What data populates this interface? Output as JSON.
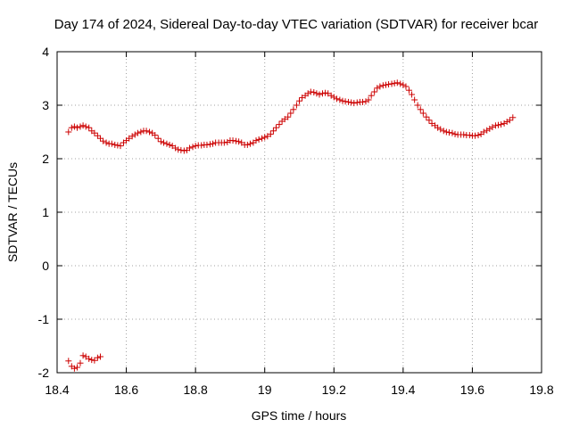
{
  "chart_data": {
    "type": "scatter",
    "title": "Day 174 of 2024, Sidereal Day-to-day VTEC variation (SDTVAR) for receiver bcar",
    "xlabel": "GPS time / hours",
    "ylabel": "SDTVAR / TECUs",
    "xlim": [
      18.4,
      19.8
    ],
    "ylim": [
      -2,
      4
    ],
    "xticks": [
      18.4,
      18.6,
      18.8,
      19.0,
      19.2,
      19.4,
      19.6,
      19.8
    ],
    "xtick_labels": [
      "18.4",
      "18.6",
      "18.8",
      "19",
      "19.2",
      "19.4",
      "19.6",
      "19.8"
    ],
    "yticks": [
      -2,
      -1,
      0,
      1,
      2,
      3,
      4
    ],
    "ytick_labels": [
      "-2",
      "-1",
      "0",
      "1",
      "2",
      "3",
      "4"
    ],
    "grid": true,
    "marker": "+",
    "marker_color": "#cc0000",
    "series": [
      {
        "name": "SDTVAR",
        "points": [
          [
            18.433,
            -1.78
          ],
          [
            18.442,
            -1.88
          ],
          [
            18.45,
            -1.92
          ],
          [
            18.458,
            -1.9
          ],
          [
            18.467,
            -1.82
          ],
          [
            18.475,
            -1.68
          ],
          [
            18.483,
            -1.7
          ],
          [
            18.492,
            -1.74
          ],
          [
            18.5,
            -1.76
          ],
          [
            18.508,
            -1.77
          ],
          [
            18.517,
            -1.72
          ],
          [
            18.525,
            -1.7
          ],
          [
            18.433,
            2.5
          ],
          [
            18.442,
            2.58
          ],
          [
            18.45,
            2.6
          ],
          [
            18.458,
            2.58
          ],
          [
            18.467,
            2.6
          ],
          [
            18.475,
            2.62
          ],
          [
            18.483,
            2.6
          ],
          [
            18.492,
            2.58
          ],
          [
            18.5,
            2.52
          ],
          [
            18.508,
            2.48
          ],
          [
            18.517,
            2.43
          ],
          [
            18.525,
            2.38
          ],
          [
            18.533,
            2.33
          ],
          [
            18.542,
            2.3
          ],
          [
            18.55,
            2.28
          ],
          [
            18.558,
            2.28
          ],
          [
            18.567,
            2.26
          ],
          [
            18.575,
            2.25
          ],
          [
            18.583,
            2.24
          ],
          [
            18.592,
            2.3
          ],
          [
            18.6,
            2.34
          ],
          [
            18.608,
            2.38
          ],
          [
            18.617,
            2.42
          ],
          [
            18.625,
            2.45
          ],
          [
            18.633,
            2.48
          ],
          [
            18.642,
            2.5
          ],
          [
            18.65,
            2.52
          ],
          [
            18.658,
            2.52
          ],
          [
            18.667,
            2.5
          ],
          [
            18.675,
            2.48
          ],
          [
            18.683,
            2.44
          ],
          [
            18.692,
            2.38
          ],
          [
            18.7,
            2.32
          ],
          [
            18.708,
            2.3
          ],
          [
            18.717,
            2.28
          ],
          [
            18.725,
            2.26
          ],
          [
            18.733,
            2.24
          ],
          [
            18.742,
            2.2
          ],
          [
            18.75,
            2.17
          ],
          [
            18.758,
            2.16
          ],
          [
            18.767,
            2.15
          ],
          [
            18.775,
            2.16
          ],
          [
            18.783,
            2.2
          ],
          [
            18.792,
            2.22
          ],
          [
            18.8,
            2.24
          ],
          [
            18.808,
            2.25
          ],
          [
            18.817,
            2.25
          ],
          [
            18.825,
            2.26
          ],
          [
            18.833,
            2.26
          ],
          [
            18.842,
            2.27
          ],
          [
            18.85,
            2.28
          ],
          [
            18.858,
            2.3
          ],
          [
            18.867,
            2.3
          ],
          [
            18.875,
            2.3
          ],
          [
            18.883,
            2.3
          ],
          [
            18.892,
            2.31
          ],
          [
            18.9,
            2.34
          ],
          [
            18.908,
            2.34
          ],
          [
            18.917,
            2.33
          ],
          [
            18.925,
            2.32
          ],
          [
            18.933,
            2.3
          ],
          [
            18.942,
            2.26
          ],
          [
            18.95,
            2.26
          ],
          [
            18.958,
            2.28
          ],
          [
            18.967,
            2.3
          ],
          [
            18.975,
            2.34
          ],
          [
            18.983,
            2.36
          ],
          [
            18.992,
            2.38
          ],
          [
            19.0,
            2.4
          ],
          [
            19.008,
            2.42
          ],
          [
            19.017,
            2.46
          ],
          [
            19.025,
            2.52
          ],
          [
            19.033,
            2.58
          ],
          [
            19.042,
            2.64
          ],
          [
            19.05,
            2.7
          ],
          [
            19.058,
            2.74
          ],
          [
            19.067,
            2.78
          ],
          [
            19.075,
            2.85
          ],
          [
            19.083,
            2.92
          ],
          [
            19.092,
            3.0
          ],
          [
            19.1,
            3.08
          ],
          [
            19.108,
            3.14
          ],
          [
            19.117,
            3.18
          ],
          [
            19.125,
            3.22
          ],
          [
            19.133,
            3.25
          ],
          [
            19.142,
            3.24
          ],
          [
            19.15,
            3.22
          ],
          [
            19.158,
            3.2
          ],
          [
            19.167,
            3.22
          ],
          [
            19.175,
            3.23
          ],
          [
            19.183,
            3.22
          ],
          [
            19.192,
            3.18
          ],
          [
            19.2,
            3.15
          ],
          [
            19.208,
            3.12
          ],
          [
            19.217,
            3.1
          ],
          [
            19.225,
            3.08
          ],
          [
            19.233,
            3.07
          ],
          [
            19.242,
            3.06
          ],
          [
            19.25,
            3.05
          ],
          [
            19.258,
            3.04
          ],
          [
            19.267,
            3.05
          ],
          [
            19.275,
            3.06
          ],
          [
            19.283,
            3.06
          ],
          [
            19.292,
            3.07
          ],
          [
            19.3,
            3.1
          ],
          [
            19.308,
            3.18
          ],
          [
            19.317,
            3.25
          ],
          [
            19.325,
            3.32
          ],
          [
            19.333,
            3.35
          ],
          [
            19.342,
            3.37
          ],
          [
            19.35,
            3.38
          ],
          [
            19.358,
            3.39
          ],
          [
            19.367,
            3.4
          ],
          [
            19.375,
            3.41
          ],
          [
            19.383,
            3.42
          ],
          [
            19.392,
            3.4
          ],
          [
            19.4,
            3.38
          ],
          [
            19.408,
            3.35
          ],
          [
            19.417,
            3.28
          ],
          [
            19.425,
            3.2
          ],
          [
            19.433,
            3.1
          ],
          [
            19.442,
            3.0
          ],
          [
            19.45,
            2.92
          ],
          [
            19.458,
            2.85
          ],
          [
            19.467,
            2.78
          ],
          [
            19.475,
            2.72
          ],
          [
            19.483,
            2.66
          ],
          [
            19.492,
            2.62
          ],
          [
            19.5,
            2.58
          ],
          [
            19.508,
            2.55
          ],
          [
            19.517,
            2.52
          ],
          [
            19.525,
            2.5
          ],
          [
            19.533,
            2.49
          ],
          [
            19.542,
            2.48
          ],
          [
            19.55,
            2.46
          ],
          [
            19.558,
            2.45
          ],
          [
            19.567,
            2.45
          ],
          [
            19.575,
            2.45
          ],
          [
            19.583,
            2.44
          ],
          [
            19.592,
            2.44
          ],
          [
            19.6,
            2.43
          ],
          [
            19.608,
            2.43
          ],
          [
            19.617,
            2.44
          ],
          [
            19.625,
            2.46
          ],
          [
            19.633,
            2.5
          ],
          [
            19.642,
            2.53
          ],
          [
            19.65,
            2.56
          ],
          [
            19.658,
            2.59
          ],
          [
            19.667,
            2.62
          ],
          [
            19.675,
            2.63
          ],
          [
            19.683,
            2.64
          ],
          [
            19.692,
            2.66
          ],
          [
            19.7,
            2.69
          ],
          [
            19.708,
            2.72
          ],
          [
            19.717,
            2.77
          ]
        ]
      }
    ]
  }
}
